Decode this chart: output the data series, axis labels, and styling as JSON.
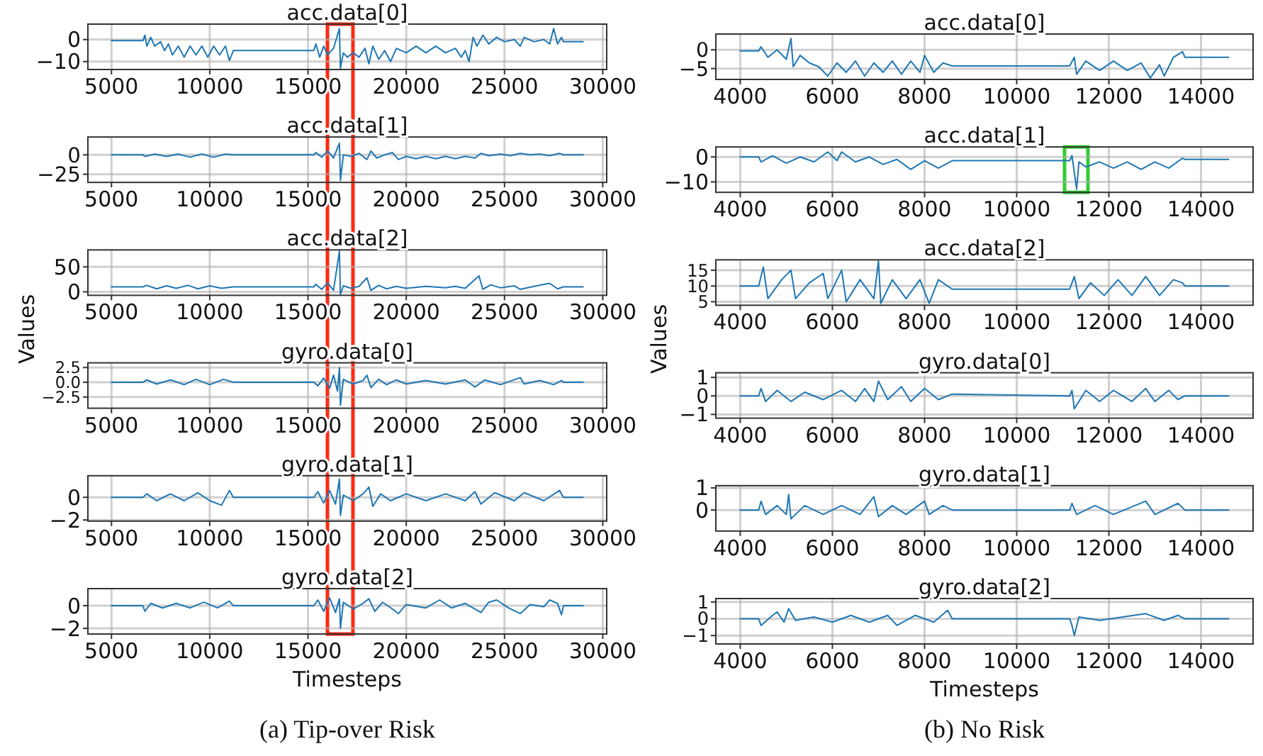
{
  "chart_data": [
    {
      "type": "line",
      "title": "acc.data[0]",
      "xlim": [
        3800,
        30200
      ],
      "xticks": [
        5000,
        10000,
        15000,
        20000,
        25000,
        30000
      ],
      "ylim": [
        -13.6,
        7
      ],
      "yticks": [
        {
          "value": -10,
          "label": "−10"
        },
        0
      ],
      "grid": true,
      "x": [
        5000,
        6600,
        6700,
        6800,
        7000,
        7200,
        7500,
        7700,
        7900,
        8100,
        8400,
        8700,
        9000,
        9300,
        9600,
        9900,
        10200,
        10500,
        10800,
        11000,
        11200,
        15300,
        15400,
        15600,
        15800,
        16000,
        16300,
        16600,
        16650,
        16800,
        17000,
        17300,
        17600,
        17900,
        18100,
        18300,
        18600,
        18900,
        19200,
        19500,
        20000,
        20500,
        21000,
        21500,
        22000,
        22500,
        22800,
        23000,
        23200,
        23400,
        23600,
        23900,
        24200,
        24600,
        25000,
        25500,
        25800,
        26000,
        26500,
        27000,
        27300,
        27500,
        27700,
        27900,
        28000,
        29000
      ],
      "series": [
        {
          "color": "#1f77b4",
          "values": [
            -0.5,
            -0.5,
            2,
            -3,
            1,
            -3,
            -1,
            -5,
            -2,
            -7,
            -3,
            -8,
            -3,
            -7,
            -3,
            -8,
            -3,
            -7,
            -3,
            -9.5,
            -5,
            -5,
            -2,
            -8,
            -3,
            -7,
            -4,
            5,
            -13,
            -6,
            -8,
            -6,
            -8,
            -4,
            -11,
            -3,
            -9,
            -5,
            -10,
            -4,
            -6,
            -3,
            -6,
            -3,
            -6,
            -4,
            -8,
            -5,
            -10,
            1,
            -3,
            2,
            -2,
            1,
            -1,
            0,
            -3,
            1,
            -1,
            0,
            -2,
            5,
            -2,
            1,
            -1,
            -1
          ]
        }
      ]
    },
    {
      "type": "line",
      "title": "acc.data[1]",
      "xlim": [
        3800,
        30200
      ],
      "xticks": [
        5000,
        10000,
        15000,
        20000,
        25000,
        30000
      ],
      "ylim": [
        -35.5,
        23
      ],
      "yticks": [
        {
          "value": -25,
          "label": "−25"
        },
        0
      ],
      "grid": true,
      "x": [
        5000,
        6600,
        6700,
        7200,
        7800,
        8400,
        9000,
        9600,
        10200,
        10800,
        11200,
        15300,
        15400,
        15700,
        16000,
        16300,
        16600,
        16650,
        16800,
        17200,
        17600,
        18000,
        18200,
        18500,
        18900,
        19300,
        19600,
        20000,
        20500,
        21000,
        21500,
        22000,
        22500,
        23000,
        23500,
        23800,
        24200,
        24800,
        25300,
        25800,
        26300,
        26800,
        27300,
        27800,
        28000,
        29000
      ],
      "series": [
        {
          "color": "#1f77b4",
          "values": [
            0,
            0,
            -2,
            1,
            -2,
            1,
            -3,
            1,
            -3,
            1,
            0,
            0,
            3,
            -3,
            5,
            -4,
            15,
            -33,
            0,
            -2,
            2,
            -6,
            5,
            -4,
            0,
            3,
            -6,
            -2,
            -5,
            -2,
            -5,
            -2,
            -5,
            -2,
            -4,
            2,
            -1,
            1,
            -1,
            2,
            0,
            1,
            -1,
            2,
            0,
            0
          ]
        }
      ]
    },
    {
      "type": "line",
      "title": "acc.data[2]",
      "xlim": [
        3800,
        30200
      ],
      "xticks": [
        5000,
        10000,
        15000,
        20000,
        25000,
        30000
      ],
      "ylim": [
        -7,
        84
      ],
      "yticks": [
        0,
        50
      ],
      "grid": true,
      "x": [
        5000,
        6600,
        6800,
        7300,
        7800,
        8300,
        8900,
        9400,
        10000,
        10600,
        11200,
        15300,
        15400,
        15700,
        16000,
        16300,
        16600,
        16650,
        16800,
        17200,
        17600,
        18000,
        18200,
        18600,
        19000,
        19500,
        20000,
        21000,
        22000,
        22500,
        23000,
        23700,
        23900,
        24300,
        24800,
        25500,
        25800,
        26500,
        27300,
        27700,
        28000,
        29000
      ],
      "series": [
        {
          "color": "#1f77b4",
          "values": [
            10,
            10,
            13,
            6,
            12,
            7,
            13,
            6,
            12,
            7,
            10,
            10,
            15,
            5,
            18,
            3,
            82,
            -5,
            12,
            7,
            11,
            28,
            3,
            13,
            6,
            11,
            7,
            11,
            8,
            11,
            7,
            32,
            5,
            14,
            8,
            12,
            5,
            11,
            17,
            6,
            10,
            10
          ]
        }
      ]
    },
    {
      "type": "line",
      "title": "gyro.data[0]",
      "ylabel": "Values",
      "xlim": [
        3800,
        30200
      ],
      "xticks": [
        5000,
        10000,
        15000,
        20000,
        25000,
        30000
      ],
      "ylim": [
        -4.4,
        3.3
      ],
      "yticks": [
        {
          "value": -2.5,
          "label": "−2.5"
        },
        {
          "value": 0,
          "label": "0.0"
        },
        2.5
      ],
      "grid": true,
      "x": [
        5000,
        6600,
        6800,
        7300,
        8000,
        8700,
        9300,
        10000,
        10700,
        11200,
        15300,
        15500,
        15800,
        16100,
        16300,
        16500,
        16600,
        16650,
        16800,
        17300,
        17800,
        18000,
        18200,
        18600,
        19000,
        19500,
        20000,
        21000,
        22000,
        23000,
        23500,
        24000,
        24800,
        25800,
        26000,
        26800,
        27500,
        27900,
        28000,
        29000
      ],
      "series": [
        {
          "color": "#1f77b4",
          "values": [
            0,
            0,
            0.4,
            -0.3,
            0.4,
            -0.4,
            0.5,
            -0.4,
            0.5,
            0,
            0,
            -0.6,
            0.7,
            -1,
            1.2,
            -1.5,
            2.5,
            -3.9,
            0.5,
            -0.3,
            0.3,
            1.2,
            -0.9,
            0.5,
            -0.4,
            0.4,
            -0.3,
            0.3,
            -0.3,
            0.4,
            -0.8,
            0.4,
            -0.4,
            0.8,
            -0.3,
            0.3,
            -0.4,
            0.3,
            0,
            0
          ]
        }
      ]
    },
    {
      "type": "line",
      "title": "gyro.data[1]",
      "xlim": [
        3800,
        30200
      ],
      "xticks": [
        5000,
        10000,
        15000,
        20000,
        25000,
        30000
      ],
      "ylim": [
        -2.1,
        1.9
      ],
      "yticks": [
        {
          "value": -2,
          "label": "−2"
        },
        0
      ],
      "grid": true,
      "x": [
        5000,
        6600,
        6800,
        7300,
        8000,
        8700,
        9400,
        10000,
        10600,
        11000,
        11200,
        15300,
        15500,
        15800,
        16100,
        16400,
        16600,
        16650,
        16800,
        17300,
        17800,
        18100,
        18300,
        18700,
        19200,
        20000,
        21000,
        22000,
        23000,
        23500,
        23800,
        24500,
        25500,
        26000,
        27000,
        27800,
        28000,
        29000
      ],
      "series": [
        {
          "color": "#1f77b4",
          "values": [
            0,
            0,
            0.3,
            -0.3,
            0.3,
            -0.3,
            0.4,
            -0.3,
            -0.7,
            0.6,
            0,
            0,
            0.5,
            -0.5,
            0.6,
            -0.6,
            1.6,
            -1.6,
            0.2,
            -0.3,
            0.3,
            0.9,
            -0.8,
            0.3,
            -0.3,
            0.3,
            -0.3,
            0.3,
            -0.3,
            0.5,
            -0.6,
            0.4,
            -0.3,
            0.4,
            -0.3,
            0.6,
            0,
            0
          ]
        }
      ]
    },
    {
      "type": "line",
      "title": "gyro.data[2]",
      "xlabel": "Timesteps",
      "annotations": [
        "(a) Tip-over Risk"
      ],
      "xlim": [
        3800,
        30200
      ],
      "xticks": [
        5000,
        10000,
        15000,
        20000,
        25000,
        30000
      ],
      "ylim": [
        -2.5,
        1.5
      ],
      "yticks": [
        {
          "value": -2,
          "label": "−2"
        },
        0
      ],
      "grid": true,
      "x": [
        5000,
        6600,
        6700,
        7000,
        7600,
        8300,
        9000,
        9700,
        10400,
        11000,
        11200,
        15300,
        15500,
        15800,
        16100,
        16400,
        16600,
        16650,
        16800,
        17300,
        17800,
        18100,
        18400,
        18800,
        19300,
        19600,
        20000,
        21000,
        21700,
        22300,
        23000,
        23800,
        24200,
        24600,
        25200,
        25800,
        26300,
        27000,
        27300,
        27700,
        27900,
        28000,
        29000
      ],
      "series": [
        {
          "color": "#1f77b4",
          "values": [
            0,
            0,
            -0.5,
            0.2,
            -0.2,
            0.2,
            -0.2,
            0.3,
            -0.2,
            0.4,
            0,
            0,
            0.5,
            -0.5,
            0.7,
            -0.6,
            0.6,
            -2,
            0.3,
            -0.3,
            0.2,
            0.6,
            -0.5,
            0.3,
            -0.3,
            -0.7,
            0.1,
            -0.2,
            0.5,
            -0.2,
            0.2,
            -0.6,
            0.3,
            0.5,
            -0.2,
            -0.7,
            0.1,
            -0.1,
            0.5,
            0.2,
            -0.8,
            0,
            0
          ]
        }
      ]
    },
    {
      "type": "line",
      "title": "acc.data[0]",
      "xlim": [
        3470,
        15130
      ],
      "xticks": [
        4000,
        6000,
        8000,
        10000,
        12000,
        14000
      ],
      "ylim": [
        -7.9,
        4.2
      ],
      "yticks": [
        {
          "value": -5,
          "label": "−5"
        },
        0
      ],
      "grid": true,
      "x": [
        4000,
        4400,
        4450,
        4600,
        4800,
        5000,
        5100,
        5150,
        5300,
        5500,
        5700,
        5900,
        6100,
        6300,
        6500,
        6700,
        6900,
        7100,
        7300,
        7500,
        7700,
        7900,
        8000,
        8200,
        8400,
        8600,
        11150,
        11250,
        11300,
        11500,
        11800,
        12100,
        12400,
        12700,
        12900,
        13100,
        13200,
        13400,
        13600,
        13650,
        14600
      ],
      "series": [
        {
          "color": "#1f77b4",
          "values": [
            -0.3,
            -0.3,
            0.8,
            -2,
            0,
            -2.5,
            3,
            -4.5,
            -1.5,
            -3.5,
            -4.5,
            -7,
            -3.5,
            -6,
            -3,
            -7,
            -3.5,
            -6,
            -3,
            -6.5,
            -3,
            -6,
            -1.5,
            -6,
            -3.5,
            -4.3,
            -4.3,
            -2,
            -6.5,
            -3,
            -5.5,
            -3,
            -5.5,
            -3.5,
            -7.5,
            -4,
            -7,
            -2,
            -0.5,
            -2,
            -2
          ]
        }
      ]
    },
    {
      "type": "line",
      "title": "acc.data[1]",
      "xlim": [
        3470,
        15130
      ],
      "xticks": [
        4000,
        6000,
        8000,
        10000,
        12000,
        14000
      ],
      "ylim": [
        -14.2,
        4
      ],
      "yticks": [
        {
          "value": -10,
          "label": "−10"
        },
        0
      ],
      "grid": true,
      "x": [
        4000,
        4400,
        4450,
        4700,
        5000,
        5300,
        5600,
        5900,
        6100,
        6200,
        6500,
        6800,
        7100,
        7400,
        7700,
        8000,
        8300,
        8600,
        11150,
        11200,
        11300,
        11350,
        11500,
        11800,
        12100,
        12400,
        12700,
        13000,
        13300,
        13600,
        13650,
        14600
      ],
      "series": [
        {
          "color": "#1f77b4",
          "values": [
            0,
            0,
            -2,
            0.5,
            -2.5,
            0,
            -2,
            2,
            -1.5,
            2,
            -2,
            0,
            -3,
            -1,
            -5,
            -1.5,
            -4.5,
            -1.5,
            -1.5,
            0.5,
            -13,
            -2,
            -4,
            -2,
            -4.5,
            -2,
            -5,
            -2,
            -4.5,
            -0.5,
            -1,
            -1
          ]
        }
      ]
    },
    {
      "type": "line",
      "title": "acc.data[2]",
      "xlim": [
        3470,
        15130
      ],
      "xticks": [
        4000,
        6000,
        8000,
        10000,
        12000,
        14000
      ],
      "ylim": [
        3.9,
        18.3
      ],
      "yticks": [
        5,
        10,
        15
      ],
      "grid": true,
      "x": [
        4000,
        4400,
        4500,
        4600,
        4900,
        5100,
        5200,
        5500,
        5800,
        5900,
        6200,
        6300,
        6600,
        6900,
        7000,
        7050,
        7300,
        7600,
        7900,
        8100,
        8300,
        8600,
        11150,
        11250,
        11350,
        11600,
        11900,
        12200,
        12500,
        12800,
        13100,
        13400,
        13600,
        13650,
        14600
      ],
      "series": [
        {
          "color": "#1f77b4",
          "values": [
            10,
            10,
            16,
            6,
            12,
            15,
            6,
            11,
            14,
            6,
            15,
            5,
            12,
            6,
            18,
            4.5,
            12,
            6,
            12,
            4.5,
            12,
            9,
            9,
            13,
            6,
            11,
            7,
            12,
            7,
            13,
            7,
            12,
            11,
            10,
            10
          ]
        }
      ]
    },
    {
      "type": "line",
      "title": "gyro.data[0]",
      "ylabel": "Values",
      "xlim": [
        3470,
        15130
      ],
      "xticks": [
        4000,
        6000,
        8000,
        10000,
        12000,
        14000
      ],
      "ylim": [
        -1.2,
        1.25
      ],
      "yticks": [
        {
          "value": -1,
          "label": "−1"
        },
        0,
        1
      ],
      "grid": true,
      "x": [
        4000,
        4400,
        4450,
        4550,
        4800,
        5100,
        5400,
        5800,
        6200,
        6500,
        6700,
        6900,
        7000,
        7200,
        7500,
        7700,
        8000,
        8300,
        8600,
        11150,
        11200,
        11250,
        11500,
        11800,
        12100,
        12500,
        12800,
        13000,
        13300,
        13500,
        13650,
        14600
      ],
      "series": [
        {
          "color": "#1f77b4",
          "values": [
            0,
            0,
            0.4,
            -0.3,
            0.3,
            -0.3,
            0.2,
            -0.2,
            0.3,
            -0.3,
            0.4,
            -0.3,
            0.8,
            -0.2,
            0.5,
            -0.3,
            0.4,
            -0.2,
            0.1,
            0,
            0.3,
            -0.7,
            0.3,
            -0.3,
            0.3,
            -0.3,
            0.4,
            -0.3,
            0.3,
            -0.2,
            0,
            0
          ]
        }
      ]
    },
    {
      "type": "line",
      "title": "gyro.data[1]",
      "xlim": [
        3470,
        15130
      ],
      "xticks": [
        4000,
        6000,
        8000,
        10000,
        12000,
        14000
      ],
      "ylim": [
        -0.95,
        1.1
      ],
      "yticks": [
        0,
        1
      ],
      "grid": true,
      "x": [
        4000,
        4400,
        4450,
        4550,
        4800,
        5000,
        5050,
        5100,
        5400,
        5800,
        6200,
        6600,
        6900,
        7000,
        7300,
        7600,
        8000,
        8100,
        8400,
        8600,
        11150,
        11200,
        11300,
        11700,
        12100,
        12800,
        13000,
        13500,
        13650,
        14600
      ],
      "series": [
        {
          "color": "#1f77b4",
          "values": [
            0,
            0,
            0.4,
            -0.2,
            0.2,
            -0.2,
            0.7,
            -0.4,
            0.2,
            -0.2,
            0.2,
            -0.2,
            0.6,
            -0.3,
            0.2,
            -0.2,
            0.4,
            -0.2,
            0.2,
            0,
            0,
            0.3,
            -0.2,
            0.2,
            -0.2,
            0.4,
            -0.2,
            0.3,
            0,
            0
          ]
        }
      ]
    },
    {
      "type": "line",
      "title": "gyro.data[2]",
      "xlabel": "Timesteps",
      "annotations": [
        "(b) No Risk"
      ],
      "xlim": [
        3470,
        15130
      ],
      "xticks": [
        4000,
        6000,
        8000,
        10000,
        12000,
        14000
      ],
      "ylim": [
        -1.5,
        1.2
      ],
      "yticks": [
        {
          "value": -1,
          "label": "−1"
        },
        0,
        1
      ],
      "grid": true,
      "x": [
        4000,
        4400,
        4450,
        4700,
        4800,
        4950,
        5050,
        5200,
        5600,
        6000,
        6400,
        6800,
        7200,
        7400,
        7800,
        8200,
        8500,
        8600,
        11150,
        11200,
        11250,
        11350,
        11800,
        12300,
        12800,
        13200,
        13500,
        13650,
        14600
      ],
      "series": [
        {
          "color": "#1f77b4",
          "values": [
            0,
            0,
            -0.4,
            0.2,
            0.4,
            -0.2,
            0.6,
            -0.1,
            0.1,
            -0.2,
            0.2,
            -0.2,
            0.2,
            -0.4,
            0.2,
            -0.2,
            0.5,
            0,
            0,
            -0.4,
            -1,
            0.1,
            -0.1,
            0.1,
            0.3,
            -0.1,
            0.2,
            0,
            0
          ]
        }
      ]
    }
  ]
}
